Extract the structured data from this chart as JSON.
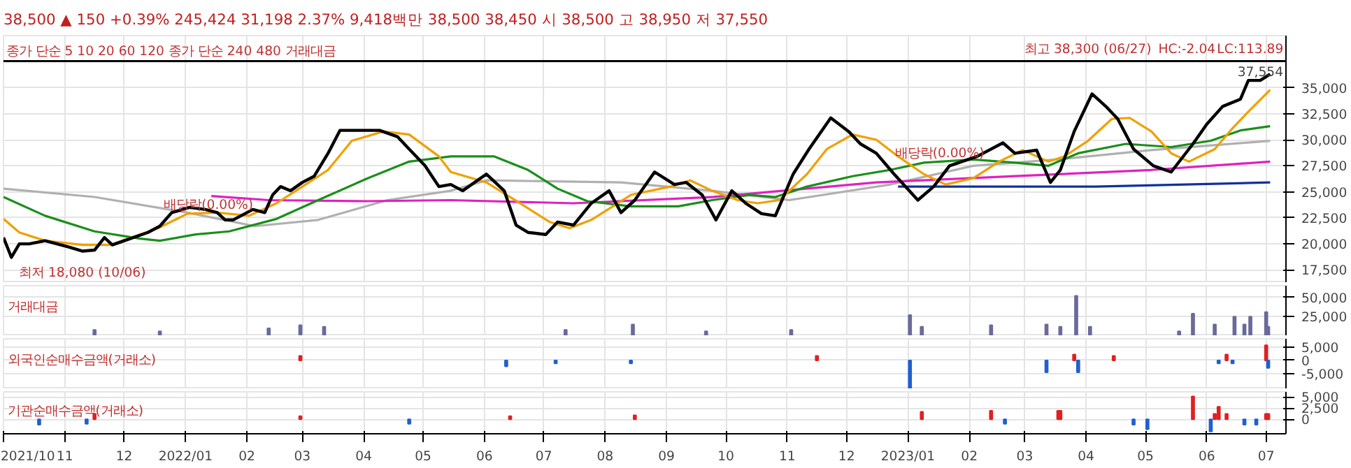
{
  "chart_data": [
    {
      "type": "line",
      "subtitle": "38,500 ▲ 150 +0.39%   245,424   31,198   2.37%   9,418백만   38,500   38,450   시 38,500   고 38,950   저 37,550",
      "xlim": [
        "2021-10-01",
        "2023-07-11"
      ],
      "ylim": [
        16250,
        40000
      ],
      "yticks": [
        {
          "value": 17500,
          "label": "17,500"
        },
        {
          "value": 20000,
          "label": "20,000"
        },
        {
          "value": 22500,
          "label": "22,500"
        },
        {
          "value": 25000,
          "label": "25,000"
        },
        {
          "value": 27500,
          "label": "27,500"
        },
        {
          "value": 30000,
          "label": "30,000"
        },
        {
          "value": 32500,
          "label": "32,500"
        },
        {
          "value": 35000,
          "label": "35,000"
        }
      ],
      "tick_labels": "y",
      "grid": true,
      "series": [
        {
          "color": "#b0b0b0",
          "x": [
            "2021-10-01",
            "2021-11-16",
            "2022-01-02",
            "2022-02-05",
            "2022-03-09",
            "2022-04-13",
            "2022-05-15",
            "2022-06-02",
            "2022-08-09",
            "2022-09-24",
            "2022-11-02",
            "2022-12-23",
            "2023-02-03",
            "2023-03-17",
            "2023-05-04",
            "2023-07-03"
          ],
          "values": [
            25300,
            24500,
            23000,
            21700,
            22300,
            24200,
            25100,
            26100,
            25900,
            25100,
            24200,
            25700,
            27500,
            28100,
            29000,
            29900
          ]
        },
        {
          "color": "#e020c0",
          "x": [
            "2022-01-14",
            "2022-02-12",
            "2022-04-03",
            "2022-05-15",
            "2022-07-16",
            "2022-09-24",
            "2022-12-16",
            "2023-02-24",
            "2023-05-04",
            "2023-07-03"
          ],
          "values": [
            24600,
            24200,
            24100,
            24200,
            23900,
            24500,
            25900,
            26500,
            27100,
            27900
          ]
        },
        {
          "color": "#1030a0",
          "x": [
            "2022-12-27",
            "2023-04-06",
            "2023-07-03"
          ],
          "values": [
            25500,
            25500,
            25900
          ]
        },
        {
          "color": "#1a8f1a",
          "x": [
            "2021-10-01",
            "2021-10-22",
            "2021-11-16",
            "2021-12-09",
            "2021-12-19",
            "2022-01-06",
            "2022-01-23",
            "2022-02-16",
            "2022-03-09",
            "2022-04-03",
            "2022-04-24",
            "2022-05-15",
            "2022-06-06",
            "2022-06-23",
            "2022-07-08",
            "2022-07-23",
            "2022-08-14",
            "2022-09-07",
            "2022-09-24",
            "2022-10-13",
            "2022-10-26",
            "2022-11-11",
            "2022-12-04",
            "2022-12-23",
            "2023-01-09",
            "2023-02-03",
            "2023-02-24",
            "2023-03-13",
            "2023-03-28",
            "2023-04-21",
            "2023-05-14",
            "2023-06-03",
            "2023-06-18",
            "2023-07-03"
          ],
          "values": [
            24500,
            22700,
            21200,
            20500,
            20300,
            20900,
            21200,
            22400,
            24200,
            26300,
            27900,
            28400,
            28400,
            27100,
            25300,
            24100,
            23600,
            23600,
            24200,
            24700,
            24500,
            25500,
            26500,
            27100,
            27800,
            28100,
            27800,
            27500,
            28700,
            29600,
            29300,
            29900,
            30900,
            31300
          ]
        },
        {
          "color": "#f0a000",
          "x": [
            "2021-10-01",
            "2021-10-09",
            "2021-10-22",
            "2021-11-10",
            "2021-11-24",
            "2021-12-09",
            "2021-12-18",
            "2022-01-02",
            "2022-01-17",
            "2022-02-02",
            "2022-02-16",
            "2022-03-01",
            "2022-03-14",
            "2022-03-26",
            "2022-04-11",
            "2022-04-24",
            "2022-05-09",
            "2022-05-15",
            "2022-06-02",
            "2022-06-19",
            "2022-07-04",
            "2022-07-14",
            "2022-07-25",
            "2022-08-14",
            "2022-09-03",
            "2022-09-13",
            "2022-09-24",
            "2022-10-07",
            "2022-10-17",
            "2022-10-28",
            "2022-11-11",
            "2022-11-21",
            "2022-12-04",
            "2022-12-16",
            "2022-12-27",
            "2023-01-09",
            "2023-01-20",
            "2023-02-03",
            "2023-02-16",
            "2023-02-28",
            "2023-03-13",
            "2023-03-21",
            "2023-04-02",
            "2023-04-14",
            "2023-04-23",
            "2023-05-04",
            "2023-05-14",
            "2023-05-23",
            "2023-06-05",
            "2023-06-14",
            "2023-06-22",
            "2023-07-03"
          ],
          "values": [
            22400,
            21100,
            20300,
            19900,
            19900,
            20900,
            21500,
            22900,
            23000,
            22700,
            23900,
            25500,
            27100,
            29900,
            30800,
            30500,
            28400,
            26900,
            25900,
            23900,
            22100,
            21500,
            22300,
            24700,
            25500,
            26100,
            25100,
            24200,
            23900,
            24200,
            26700,
            29100,
            30500,
            30000,
            28400,
            26700,
            25700,
            26300,
            27900,
            29000,
            27900,
            28400,
            29900,
            32000,
            32100,
            30800,
            28700,
            27900,
            29100,
            31100,
            32700,
            34800
          ]
        },
        {
          "color": "#000000",
          "x": [
            "2021-10-01",
            "2021-10-05",
            "2021-10-09",
            "2021-10-14",
            "2021-10-22",
            "2021-11-03",
            "2021-11-10",
            "2021-11-16",
            "2021-11-21",
            "2021-11-25",
            "2021-12-04",
            "2021-12-13",
            "2021-12-19",
            "2021-12-25",
            "2022-01-03",
            "2022-01-11",
            "2022-01-17",
            "2022-01-21",
            "2022-01-25",
            "2022-02-04",
            "2022-02-10",
            "2022-02-14",
            "2022-02-18",
            "2022-02-23",
            "2022-03-01",
            "2022-03-07",
            "2022-03-14",
            "2022-03-20",
            "2022-03-28",
            "2022-04-09",
            "2022-04-18",
            "2022-04-24",
            "2022-05-02",
            "2022-05-09",
            "2022-05-15",
            "2022-05-21",
            "2022-06-02",
            "2022-06-11",
            "2022-06-17",
            "2022-06-23",
            "2022-07-02",
            "2022-07-08",
            "2022-07-16",
            "2022-07-25",
            "2022-08-03",
            "2022-08-09",
            "2022-08-16",
            "2022-08-26",
            "2022-09-05",
            "2022-09-11",
            "2022-09-19",
            "2022-09-26",
            "2022-10-04",
            "2022-10-11",
            "2022-10-19",
            "2022-10-26",
            "2022-11-04",
            "2022-11-12",
            "2022-11-23",
            "2022-12-02",
            "2022-12-08",
            "2022-12-16",
            "2022-12-25",
            "2023-01-06",
            "2023-01-14",
            "2023-01-22",
            "2023-02-05",
            "2023-02-18",
            "2023-02-24",
            "2023-03-07",
            "2023-03-14",
            "2023-03-19",
            "2023-03-26",
            "2023-04-04",
            "2023-04-11",
            "2023-04-17",
            "2023-04-25",
            "2023-05-05",
            "2023-05-14",
            "2023-05-25",
            "2023-06-01",
            "2023-06-09",
            "2023-06-18",
            "2023-06-22",
            "2023-06-28",
            "2023-07-03"
          ],
          "values": [
            20600,
            18700,
            20000,
            20000,
            20300,
            19700,
            19300,
            19400,
            20600,
            19900,
            20500,
            21100,
            21700,
            23000,
            23500,
            23300,
            23000,
            22300,
            22300,
            23300,
            23000,
            24700,
            25500,
            25100,
            25900,
            26500,
            28700,
            30900,
            30900,
            30900,
            30300,
            29100,
            27500,
            25500,
            25700,
            25100,
            26700,
            25100,
            21800,
            21100,
            20900,
            22100,
            21800,
            23900,
            25100,
            23000,
            24200,
            26900,
            25700,
            25900,
            24700,
            22300,
            25100,
            23900,
            22900,
            22700,
            26700,
            29100,
            32100,
            30800,
            29600,
            28700,
            26700,
            24200,
            25500,
            27500,
            28400,
            29700,
            28700,
            29000,
            25900,
            27100,
            30800,
            34400,
            33200,
            32000,
            29100,
            27500,
            26900,
            29600,
            31500,
            33200,
            33900,
            35700,
            35700,
            36300
          ]
        }
      ],
      "ref_lines": [
        {
          "axis": "y",
          "value": 37554,
          "label": "37,554",
          "color": "#000000"
        }
      ],
      "annotations": [
        "종가 단순 5 10 20 60 120   종가 단순 240 480   거래대금",
        "LC:113.89",
        "HC:-2.04",
        "최고 38,300 (06/27)",
        "최저 18,080 (10/06)",
        "배당락(0.00%)",
        "배당락(0.00%)"
      ]
    },
    {
      "type": "bar",
      "xlim": [
        "2021-10-01",
        "2023-07-11"
      ],
      "ylim": [
        0,
        65000
      ],
      "yticks": [
        {
          "value": 25000,
          "label": "25,000"
        },
        {
          "value": 50000,
          "label": "50,000"
        }
      ],
      "tick_labels": "y",
      "grid": true,
      "annotations": [
        "거래대금"
      ],
      "x": [
        "2021-11-16",
        "2021-12-19",
        "2022-02-12",
        "2022-02-28",
        "2022-03-12",
        "2022-07-12",
        "2022-08-15",
        "2022-09-21",
        "2022-11-03",
        "2023-01-02",
        "2023-01-08",
        "2023-02-12",
        "2023-03-12",
        "2023-03-19",
        "2023-03-27",
        "2023-04-03",
        "2023-05-18",
        "2023-05-25",
        "2023-06-05",
        "2023-06-15",
        "2023-06-20",
        "2023-06-23",
        "2023-07-01",
        "2023-07-02"
      ],
      "values": [
        8000,
        6000,
        10000,
        14000,
        12000,
        8000,
        15000,
        6000,
        8000,
        27000,
        12000,
        14000,
        15000,
        12000,
        52000,
        12000,
        6000,
        29000,
        15000,
        25000,
        15000,
        25000,
        31000,
        12000
      ],
      "color": "#6a6a9a"
    },
    {
      "type": "bar",
      "xlim": [
        "2021-10-01",
        "2023-07-11"
      ],
      "ylim": [
        -10600,
        8000
      ],
      "yticks": [
        {
          "value": -5000,
          "label": "-5,000"
        },
        0,
        {
          "value": 5000,
          "label": "5,000"
        }
      ],
      "tick_labels": "y",
      "grid": true,
      "annotations": [
        "외국인순매수금액(거래소)"
      ],
      "x": [
        "2022-02-28",
        "2022-06-12",
        "2022-07-07",
        "2022-08-14",
        "2022-11-16",
        "2023-01-02",
        "2023-03-12",
        "2023-03-26",
        "2023-03-28",
        "2023-04-15",
        "2023-06-07",
        "2023-06-11",
        "2023-06-14",
        "2023-07-01",
        "2023-07-02"
      ],
      "values": [
        1700,
        -2200,
        -1100,
        -1100,
        1700,
        -10500,
        -4400,
        2200,
        -4400,
        1700,
        -1100,
        2200,
        -1100,
        5600,
        -2800
      ],
      "colors": [
        "#e02020",
        "#2060d0",
        "#2060d0",
        "#2060d0",
        "#e02020",
        "#2060d0",
        "#2060d0",
        "#e02020",
        "#2060d0",
        "#e02020",
        "#2060d0",
        "#e02020",
        "#2060d0",
        "#e02020",
        "#2060d0"
      ]
    },
    {
      "type": "bar",
      "xlim": [
        "2021-10-01",
        "2023-07-11"
      ],
      "ylim": [
        -3200,
        6100
      ],
      "yticks": [
        0,
        {
          "value": 2500,
          "label": "2,500"
        },
        {
          "value": 5000,
          "label": "5,000"
        }
      ],
      "grid": true,
      "annotations": [
        "기관순매수금액(거래소)"
      ],
      "xticks": [
        {
          "value": "2021-10-01",
          "label": "2021/10"
        },
        {
          "value": "2021-11-01",
          "label": "11"
        },
        {
          "value": "2021-12-01",
          "label": "12"
        },
        {
          "value": "2022-01-01",
          "label": "2022/01"
        },
        {
          "value": "2022-02-01",
          "label": "02"
        },
        {
          "value": "2022-03-01",
          "label": "03"
        },
        {
          "value": "2022-04-01",
          "label": "04"
        },
        {
          "value": "2022-05-01",
          "label": "05"
        },
        {
          "value": "2022-06-01",
          "label": "06"
        },
        {
          "value": "2022-07-01",
          "label": "07"
        },
        {
          "value": "2022-08-01",
          "label": "08"
        },
        {
          "value": "2022-09-01",
          "label": "09"
        },
        {
          "value": "2022-10-01",
          "label": "10"
        },
        {
          "value": "2022-11-01",
          "label": "11"
        },
        {
          "value": "2022-12-01",
          "label": "12"
        },
        {
          "value": "2023-01-01",
          "label": "2023/01"
        },
        {
          "value": "2023-02-01",
          "label": "02"
        },
        {
          "value": "2023-03-01",
          "label": "03"
        },
        {
          "value": "2023-04-01",
          "label": "04"
        },
        {
          "value": "2023-05-01",
          "label": "05"
        },
        {
          "value": "2023-06-01",
          "label": "06"
        },
        {
          "value": "2023-07-01",
          "label": "07"
        }
      ],
      "x": [
        "2021-10-19",
        "2021-11-12",
        "2021-11-16",
        "2022-02-28",
        "2022-04-24",
        "2022-06-14",
        "2022-08-16",
        "2023-01-08",
        "2023-02-12",
        "2023-02-19",
        "2023-03-18",
        "2023-03-19",
        "2023-04-25",
        "2023-05-02",
        "2023-05-25",
        "2023-06-03",
        "2023-06-05",
        "2023-06-07",
        "2023-06-11",
        "2023-06-20",
        "2023-06-26",
        "2023-07-01",
        "2023-07-02"
      ],
      "values": [
        -1200,
        -1000,
        1200,
        700,
        -1000,
        700,
        900,
        1700,
        1900,
        -1000,
        1900,
        1900,
        -1200,
        -2200,
        5100,
        -2700,
        1200,
        2800,
        1200,
        -1200,
        -1200,
        1200,
        1200
      ],
      "colors": [
        "#2060d0",
        "#2060d0",
        "#e02020",
        "#e02020",
        "#2060d0",
        "#e02020",
        "#e02020",
        "#e02020",
        "#e02020",
        "#2060d0",
        "#e02020",
        "#e02020",
        "#2060d0",
        "#2060d0",
        "#e02020",
        "#2060d0",
        "#e02020",
        "#e02020",
        "#e02020",
        "#2060d0",
        "#2060d0",
        "#e02020",
        "#e02020"
      ]
    }
  ]
}
